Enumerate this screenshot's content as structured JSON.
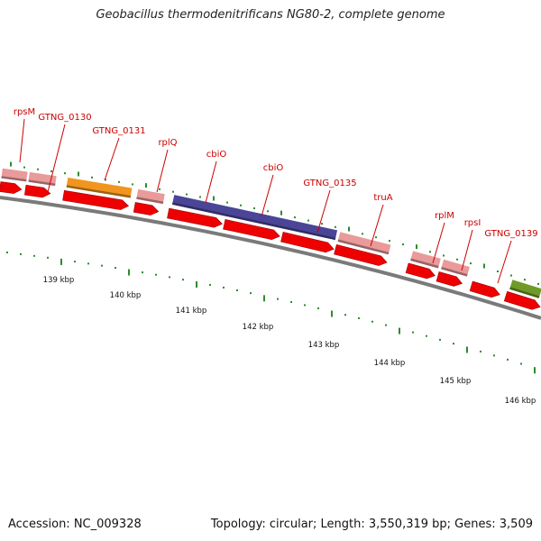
{
  "title": "Geobacillus thermodenitrificans NG80-2, complete genome",
  "footer": {
    "accession": "Accession: NC_009328",
    "info": "Topology: circular; Length: 3,550,319 bp; Genes: 3,509"
  },
  "colors": {
    "backbone": "#7a7a7a",
    "cds": "#ee0000",
    "gene_pink": "#e99a9a",
    "gene_orange": "#f0961e",
    "gene_purple": "#4a4596",
    "gene_olive": "#6f9a28",
    "label": "#cc0000",
    "tick": "#2e8b2e"
  },
  "gene_labels": [
    "rpsM",
    "GTNG_0130",
    "GTNG_0131",
    "rplQ",
    "cbiO",
    "cbiO",
    "GTNG_0135",
    "truA",
    "rplM",
    "rpsI",
    "GTNG_0139"
  ],
  "kbp_labels": [
    "139 kbp",
    "140 kbp",
    "141 kbp",
    "142 kbp",
    "143 kbp",
    "144 kbp",
    "145 kbp",
    "146 kbp"
  ],
  "gene_bars": [
    {
      "color": "pink",
      "label": "rpsM"
    },
    {
      "color": "pink",
      "label": "GTNG_0130"
    },
    {
      "color": "orange",
      "label": "GTNG_0131"
    },
    {
      "color": "pink",
      "label": "rplQ"
    },
    {
      "color": "purple",
      "label": "cbiO"
    },
    {
      "color": "pink",
      "label": "truA"
    },
    {
      "color": "pink",
      "label": "rplM"
    },
    {
      "color": "pink",
      "label": "rpsI"
    },
    {
      "color": "olive",
      "label": "GTNG_0139"
    }
  ]
}
